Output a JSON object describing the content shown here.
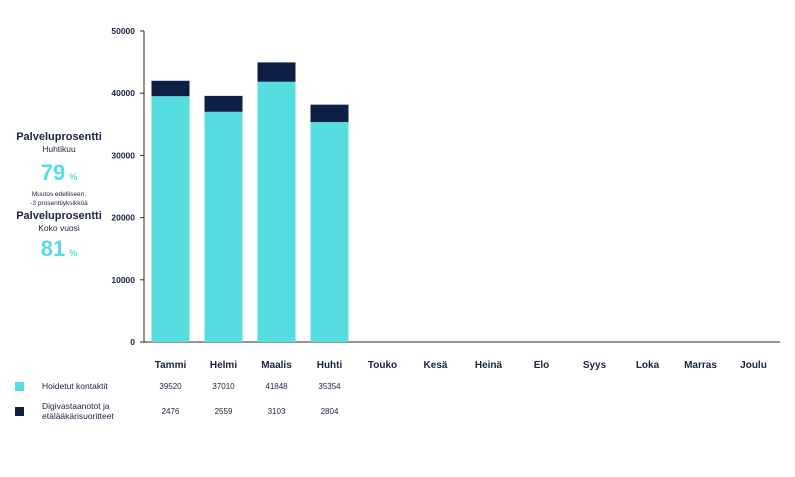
{
  "kpi": {
    "month": {
      "title": "Palveluprosentti",
      "period": "Huhtikuu",
      "value": "79",
      "unit": "%",
      "change_line1": "Muutos edelliseen:",
      "change_line2": "-3 prosenttiyksikköä"
    },
    "year": {
      "title": "Palveluprosentti",
      "period": "Koko vuosi",
      "value": "81",
      "unit": "%"
    }
  },
  "colors": {
    "series1": "#55dde0",
    "series2": "#0d1f45",
    "axis": "#2a2a2a",
    "text": "#1a2340"
  },
  "chart_data": {
    "type": "bar",
    "stacked": true,
    "categories": [
      "Tammi",
      "Helmi",
      "Maalis",
      "Huhti",
      "Touko",
      "Kesä",
      "Heinä",
      "Elo",
      "Syys",
      "Loka",
      "Marras",
      "Joulu"
    ],
    "series": [
      {
        "name": "Hoidetut kontaktit",
        "values": [
          39520,
          37010,
          41848,
          35354,
          null,
          null,
          null,
          null,
          null,
          null,
          null,
          null
        ]
      },
      {
        "name": "Digivastaanotot ja etälääkärisuoritteet",
        "values": [
          2476,
          2559,
          3103,
          2804,
          null,
          null,
          null,
          null,
          null,
          null,
          null,
          null
        ]
      }
    ],
    "yticks": [
      "0",
      "10000",
      "20000",
      "30000",
      "40000",
      "50000"
    ],
    "ylim": [
      0,
      50000
    ],
    "legend_position": "bottom-left",
    "grid": false
  }
}
